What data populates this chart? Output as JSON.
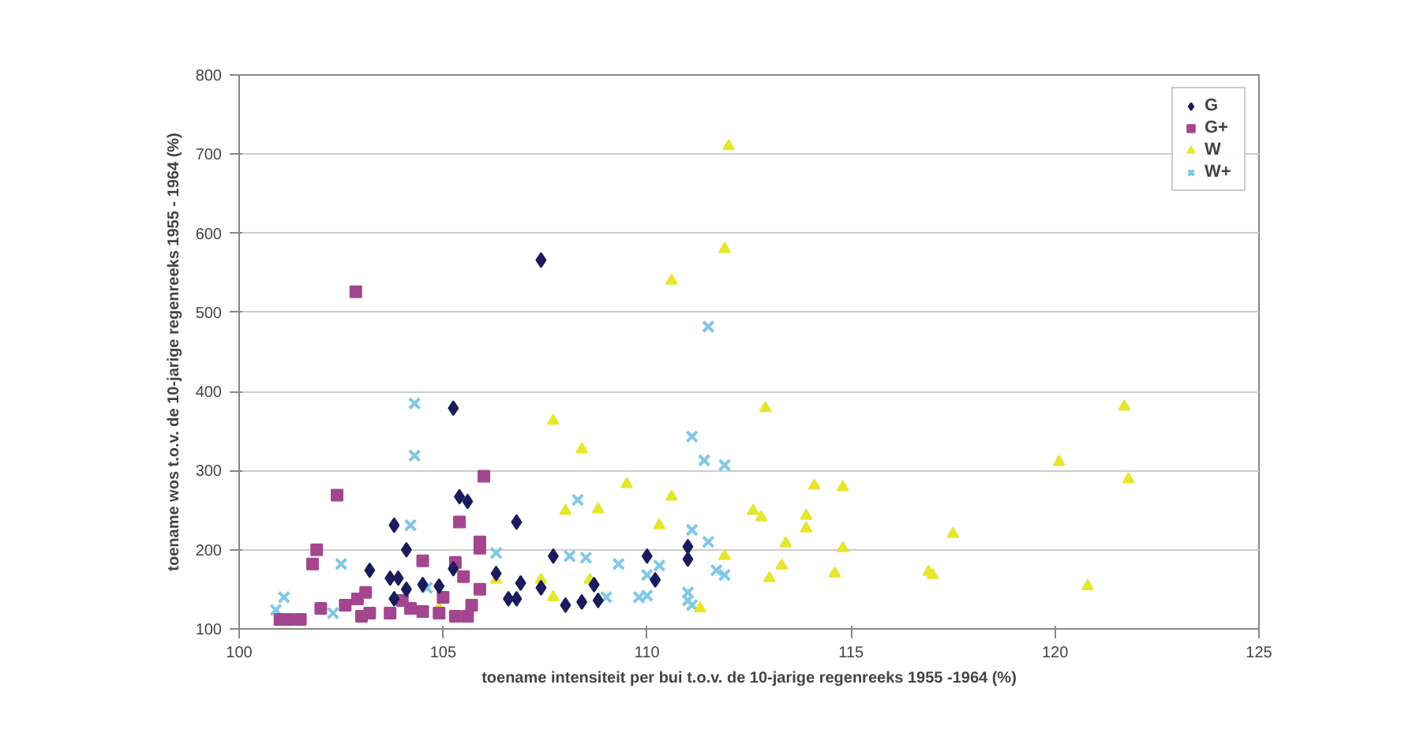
{
  "chart_data": {
    "type": "scatter",
    "xlabel": "toename intensiteit per bui t.o.v. de 10-jarige regenreeks 1955 -1964 (%)",
    "ylabel": "toename wos t.o.v. de 10-jarige regenreeks 1955 - 1964 (%)",
    "xlim": [
      100,
      125
    ],
    "ylim": [
      100,
      800
    ],
    "xticks": [
      100,
      105,
      110,
      115,
      120,
      125
    ],
    "yticks": [
      100,
      200,
      300,
      400,
      500,
      600,
      700,
      800
    ],
    "grid": "y",
    "legend": "top right",
    "series": [
      {
        "name": "G",
        "color": "#1b1b5c",
        "marker": "diamond",
        "x": [
          107.4,
          105.25,
          105.4,
          105.6,
          103.8,
          106.8,
          104.1,
          103.2,
          105.25,
          106.3,
          103.7,
          103.9,
          104.5,
          104.9,
          104.1,
          106.9,
          106.6,
          106.8,
          103.8,
          111.0,
          111.0,
          110.0,
          107.7,
          110.2,
          108.7,
          107.4,
          108.0,
          108.4,
          108.8
        ],
        "values": [
          566,
          379,
          267,
          261,
          231,
          235,
          200,
          174,
          176,
          170,
          164,
          164,
          156,
          154,
          150,
          158,
          138,
          138,
          138,
          204,
          188,
          192,
          192,
          162,
          156,
          152,
          130,
          134,
          136
        ]
      },
      {
        "name": "G+",
        "color": "#a3468f",
        "marker": "square",
        "x": [
          102.86,
          106.0,
          102.4,
          105.4,
          105.9,
          105.9,
          101.9,
          101.8,
          104.5,
          105.3,
          105.5,
          105.9,
          103.1,
          101.0,
          101.2,
          101.5,
          102.0,
          102.6,
          102.9,
          103.0,
          103.2,
          103.7,
          104.0,
          104.2,
          104.5,
          104.9,
          105.0,
          105.3,
          105.6,
          105.7
        ],
        "values": [
          526,
          293,
          269,
          235,
          210,
          202,
          200,
          182,
          186,
          184,
          166,
          150,
          146,
          112,
          112,
          112,
          126,
          130,
          138,
          116,
          120,
          120,
          136,
          126,
          122,
          120,
          140,
          116,
          116,
          130
        ]
      },
      {
        "name": "W",
        "color": "#e6e62e",
        "marker": "triangle",
        "x": [
          112.0,
          111.9,
          110.6,
          112.9,
          107.7,
          108.4,
          109.5,
          110.6,
          108.8,
          108.0,
          110.3,
          112.6,
          112.8,
          111.9,
          106.3,
          107.4,
          108.6,
          113.0,
          107.7,
          111.3,
          104.9,
          114.1,
          114.8,
          113.9,
          113.9,
          113.4,
          114.8,
          117.5,
          113.3,
          114.6,
          116.9,
          117.0,
          121.7,
          120.1,
          121.8,
          120.8
        ],
        "values": [
          710,
          580,
          540,
          379,
          363,
          327,
          283,
          267,
          251,
          249,
          231,
          249,
          241,
          192,
          162,
          162,
          162,
          164,
          140,
          126,
          126,
          281,
          279,
          243,
          227,
          208,
          202,
          220,
          180,
          170,
          172,
          168,
          381,
          311,
          289,
          154
        ]
      },
      {
        "name": "W+",
        "color": "#80c8e6",
        "marker": "x",
        "x": [
          104.3,
          104.3,
          104.2,
          106.3,
          102.5,
          101.1,
          102.3,
          104.6,
          100.9,
          111.5,
          111.1,
          111.4,
          111.9,
          108.3,
          111.1,
          111.5,
          108.1,
          108.5,
          109.3,
          110.3,
          111.7,
          111.9,
          110.0,
          109.0,
          109.8,
          110.0,
          111.0,
          111.0,
          111.1
        ],
        "values": [
          385,
          319,
          231,
          196,
          182,
          140,
          120,
          152,
          124,
          482,
          343,
          313,
          307,
          263,
          225,
          210,
          192,
          190,
          182,
          180,
          174,
          168,
          168,
          140,
          140,
          142,
          146,
          136,
          130
        ]
      }
    ]
  }
}
